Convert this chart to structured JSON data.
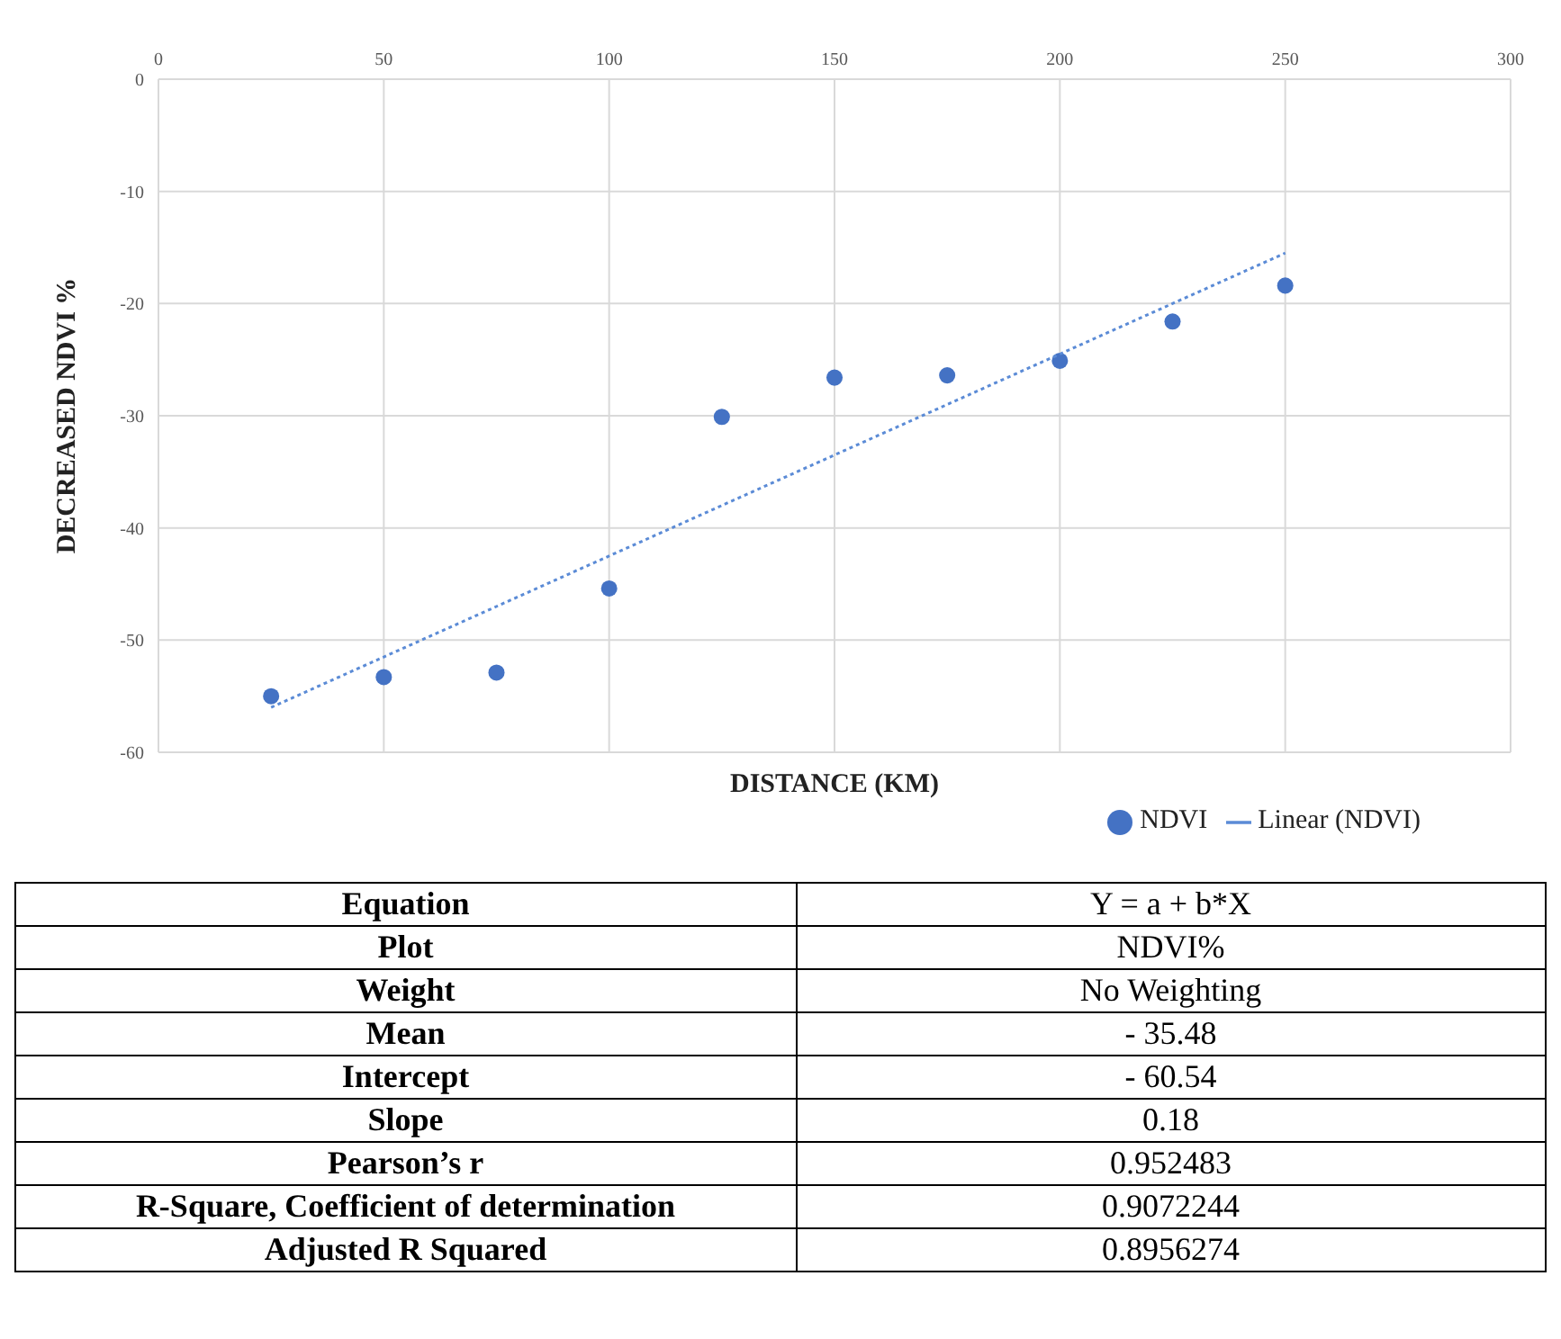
{
  "chart_data": [
    {
      "type": "scatter",
      "xlabel": "DISTANCE (KM)",
      "ylabel": "DECREASED NDVI %",
      "xlim": [
        0,
        300
      ],
      "xticks": [
        0,
        50,
        100,
        150,
        200,
        250,
        300
      ],
      "ylim": [
        -60,
        0
      ],
      "yticks": [
        -60,
        -50,
        -40,
        -30,
        -20,
        -10,
        0
      ],
      "grid": true,
      "legend": "bottom right",
      "series": [
        {
          "name": "NDVI",
          "type": "scatter",
          "color": "#4472c4",
          "marker": "circle",
          "x": [
            25,
            50,
            75,
            100,
            125,
            150,
            175,
            200,
            225,
            250
          ],
          "values": [
            -55.0,
            -53.3,
            -52.9,
            -45.4,
            -30.1,
            -26.6,
            -26.4,
            -25.1,
            -21.6,
            -18.4
          ]
        },
        {
          "name": "Linear (NDVI)",
          "type": "line",
          "color": "#5b8bd6",
          "line_style": "dotted",
          "marker": "none",
          "x": [
            25,
            250
          ],
          "values": [
            -56.0,
            -15.5
          ]
        }
      ]
    },
    {
      "type": "other",
      "annotations": [
        "Equation",
        "Y = a + b*X",
        "Plot",
        "NDVI%",
        "Weight",
        "No Weighting",
        "Mean",
        "- 35.48",
        "Intercept",
        "- 60.54",
        "Slope",
        "0.18",
        "Pearson’s r",
        "0.952483",
        "R-Square, Coefficient of determination",
        "0.9072244",
        "Adjusted R Squared",
        "0.8956274"
      ]
    }
  ]
}
